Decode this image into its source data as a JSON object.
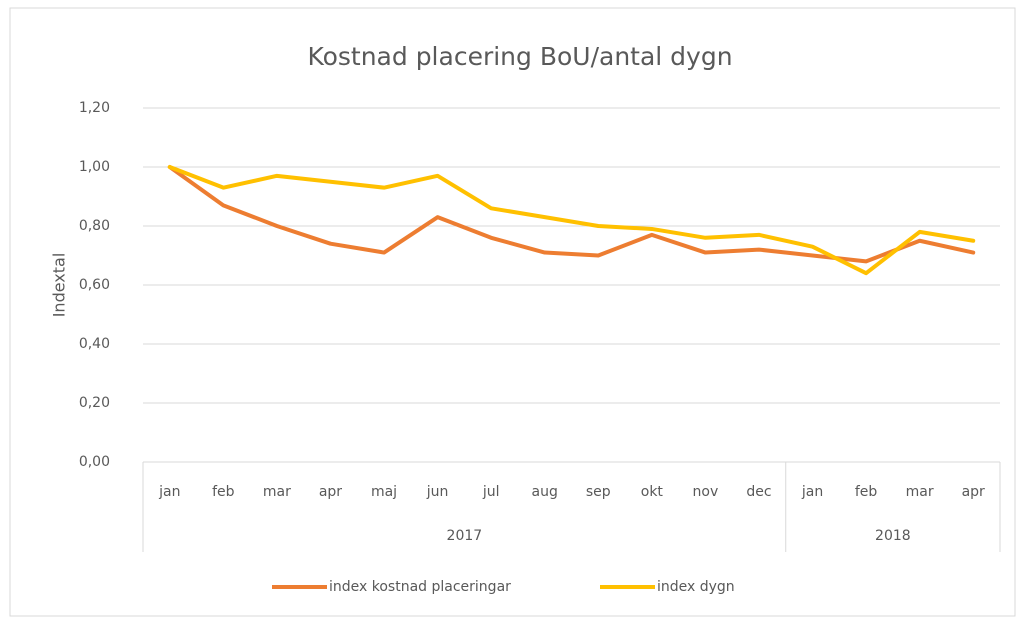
{
  "chart_data": {
    "type": "line",
    "title": "Kostnad placering BoU/antal dygn",
    "y_label": "Indextal",
    "groups": [
      {
        "label": "2017",
        "categories": [
          "jan",
          "feb",
          "mar",
          "apr",
          "maj",
          "jun",
          "jul",
          "aug",
          "sep",
          "okt",
          "nov",
          "dec"
        ]
      },
      {
        "label": "2018",
        "categories": [
          "jan",
          "feb",
          "mar",
          "apr"
        ]
      }
    ],
    "series": [
      {
        "name": "index kostnad placeringar",
        "color": "#ed7d31",
        "values": [
          1.0,
          0.87,
          0.8,
          0.74,
          0.71,
          0.83,
          0.76,
          0.71,
          0.7,
          0.77,
          0.71,
          0.72,
          0.7,
          0.68,
          0.75,
          0.71
        ]
      },
      {
        "name": "index dygn",
        "color": "#ffc000",
        "values": [
          1.0,
          0.93,
          0.97,
          0.95,
          0.93,
          0.97,
          0.86,
          0.83,
          0.8,
          0.79,
          0.76,
          0.77,
          0.73,
          0.64,
          0.78,
          0.75
        ]
      }
    ],
    "ylim": [
      0,
      1.2
    ],
    "yticks": [
      {
        "value": 0,
        "label": "0,00"
      },
      {
        "value": 0.2,
        "label": "0,20"
      },
      {
        "value": 0.4,
        "label": "0,40"
      },
      {
        "value": 0.6,
        "label": "0,60"
      },
      {
        "value": 0.8,
        "label": "0,80"
      },
      {
        "value": 1.0,
        "label": "1,00"
      },
      {
        "value": 1.2,
        "label": "1,20"
      }
    ],
    "grid": true,
    "legend": "bottom"
  }
}
